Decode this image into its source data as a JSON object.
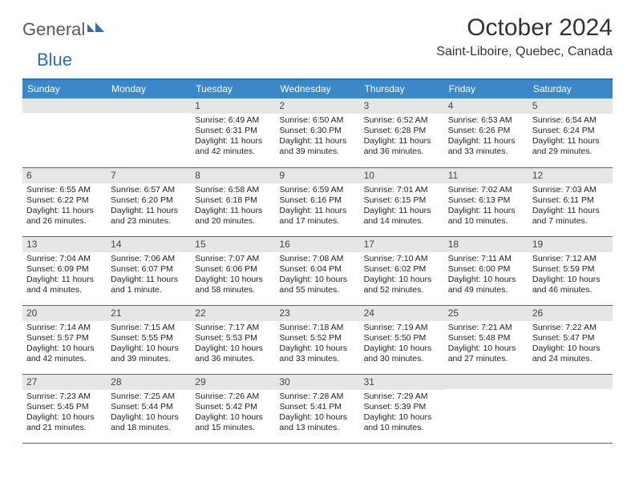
{
  "logo": {
    "text1": "General",
    "text2": "Blue"
  },
  "header": {
    "title": "October 2024",
    "location": "Saint-Liboire, Quebec, Canada"
  },
  "style": {
    "brand_blue": "#3b87c8",
    "rule_blue": "#2a70b8",
    "daynum_bg": "#e6e6e6",
    "page_bg": "#ffffff",
    "title_fontsize": 30,
    "location_fontsize": 16,
    "head_fontsize": 12,
    "body_fontsize": 10.5
  },
  "dayNames": [
    "Sunday",
    "Monday",
    "Tuesday",
    "Wednesday",
    "Thursday",
    "Friday",
    "Saturday"
  ],
  "weeks": [
    [
      null,
      null,
      {
        "n": "1",
        "sr": "Sunrise: 6:49 AM",
        "ss": "Sunset: 6:31 PM",
        "d1": "Daylight: 11 hours",
        "d2": "and 42 minutes."
      },
      {
        "n": "2",
        "sr": "Sunrise: 6:50 AM",
        "ss": "Sunset: 6:30 PM",
        "d1": "Daylight: 11 hours",
        "d2": "and 39 minutes."
      },
      {
        "n": "3",
        "sr": "Sunrise: 6:52 AM",
        "ss": "Sunset: 6:28 PM",
        "d1": "Daylight: 11 hours",
        "d2": "and 36 minutes."
      },
      {
        "n": "4",
        "sr": "Sunrise: 6:53 AM",
        "ss": "Sunset: 6:26 PM",
        "d1": "Daylight: 11 hours",
        "d2": "and 33 minutes."
      },
      {
        "n": "5",
        "sr": "Sunrise: 6:54 AM",
        "ss": "Sunset: 6:24 PM",
        "d1": "Daylight: 11 hours",
        "d2": "and 29 minutes."
      }
    ],
    [
      {
        "n": "6",
        "sr": "Sunrise: 6:55 AM",
        "ss": "Sunset: 6:22 PM",
        "d1": "Daylight: 11 hours",
        "d2": "and 26 minutes."
      },
      {
        "n": "7",
        "sr": "Sunrise: 6:57 AM",
        "ss": "Sunset: 6:20 PM",
        "d1": "Daylight: 11 hours",
        "d2": "and 23 minutes."
      },
      {
        "n": "8",
        "sr": "Sunrise: 6:58 AM",
        "ss": "Sunset: 6:18 PM",
        "d1": "Daylight: 11 hours",
        "d2": "and 20 minutes."
      },
      {
        "n": "9",
        "sr": "Sunrise: 6:59 AM",
        "ss": "Sunset: 6:16 PM",
        "d1": "Daylight: 11 hours",
        "d2": "and 17 minutes."
      },
      {
        "n": "10",
        "sr": "Sunrise: 7:01 AM",
        "ss": "Sunset: 6:15 PM",
        "d1": "Daylight: 11 hours",
        "d2": "and 14 minutes."
      },
      {
        "n": "11",
        "sr": "Sunrise: 7:02 AM",
        "ss": "Sunset: 6:13 PM",
        "d1": "Daylight: 11 hours",
        "d2": "and 10 minutes."
      },
      {
        "n": "12",
        "sr": "Sunrise: 7:03 AM",
        "ss": "Sunset: 6:11 PM",
        "d1": "Daylight: 11 hours",
        "d2": "and 7 minutes."
      }
    ],
    [
      {
        "n": "13",
        "sr": "Sunrise: 7:04 AM",
        "ss": "Sunset: 6:09 PM",
        "d1": "Daylight: 11 hours",
        "d2": "and 4 minutes."
      },
      {
        "n": "14",
        "sr": "Sunrise: 7:06 AM",
        "ss": "Sunset: 6:07 PM",
        "d1": "Daylight: 11 hours",
        "d2": "and 1 minute."
      },
      {
        "n": "15",
        "sr": "Sunrise: 7:07 AM",
        "ss": "Sunset: 6:06 PM",
        "d1": "Daylight: 10 hours",
        "d2": "and 58 minutes."
      },
      {
        "n": "16",
        "sr": "Sunrise: 7:08 AM",
        "ss": "Sunset: 6:04 PM",
        "d1": "Daylight: 10 hours",
        "d2": "and 55 minutes."
      },
      {
        "n": "17",
        "sr": "Sunrise: 7:10 AM",
        "ss": "Sunset: 6:02 PM",
        "d1": "Daylight: 10 hours",
        "d2": "and 52 minutes."
      },
      {
        "n": "18",
        "sr": "Sunrise: 7:11 AM",
        "ss": "Sunset: 6:00 PM",
        "d1": "Daylight: 10 hours",
        "d2": "and 49 minutes."
      },
      {
        "n": "19",
        "sr": "Sunrise: 7:12 AM",
        "ss": "Sunset: 5:59 PM",
        "d1": "Daylight: 10 hours",
        "d2": "and 46 minutes."
      }
    ],
    [
      {
        "n": "20",
        "sr": "Sunrise: 7:14 AM",
        "ss": "Sunset: 5:57 PM",
        "d1": "Daylight: 10 hours",
        "d2": "and 42 minutes."
      },
      {
        "n": "21",
        "sr": "Sunrise: 7:15 AM",
        "ss": "Sunset: 5:55 PM",
        "d1": "Daylight: 10 hours",
        "d2": "and 39 minutes."
      },
      {
        "n": "22",
        "sr": "Sunrise: 7:17 AM",
        "ss": "Sunset: 5:53 PM",
        "d1": "Daylight: 10 hours",
        "d2": "and 36 minutes."
      },
      {
        "n": "23",
        "sr": "Sunrise: 7:18 AM",
        "ss": "Sunset: 5:52 PM",
        "d1": "Daylight: 10 hours",
        "d2": "and 33 minutes."
      },
      {
        "n": "24",
        "sr": "Sunrise: 7:19 AM",
        "ss": "Sunset: 5:50 PM",
        "d1": "Daylight: 10 hours",
        "d2": "and 30 minutes."
      },
      {
        "n": "25",
        "sr": "Sunrise: 7:21 AM",
        "ss": "Sunset: 5:48 PM",
        "d1": "Daylight: 10 hours",
        "d2": "and 27 minutes."
      },
      {
        "n": "26",
        "sr": "Sunrise: 7:22 AM",
        "ss": "Sunset: 5:47 PM",
        "d1": "Daylight: 10 hours",
        "d2": "and 24 minutes."
      }
    ],
    [
      {
        "n": "27",
        "sr": "Sunrise: 7:23 AM",
        "ss": "Sunset: 5:45 PM",
        "d1": "Daylight: 10 hours",
        "d2": "and 21 minutes."
      },
      {
        "n": "28",
        "sr": "Sunrise: 7:25 AM",
        "ss": "Sunset: 5:44 PM",
        "d1": "Daylight: 10 hours",
        "d2": "and 18 minutes."
      },
      {
        "n": "29",
        "sr": "Sunrise: 7:26 AM",
        "ss": "Sunset: 5:42 PM",
        "d1": "Daylight: 10 hours",
        "d2": "and 15 minutes."
      },
      {
        "n": "30",
        "sr": "Sunrise: 7:28 AM",
        "ss": "Sunset: 5:41 PM",
        "d1": "Daylight: 10 hours",
        "d2": "and 13 minutes."
      },
      {
        "n": "31",
        "sr": "Sunrise: 7:29 AM",
        "ss": "Sunset: 5:39 PM",
        "d1": "Daylight: 10 hours",
        "d2": "and 10 minutes."
      },
      null,
      null
    ]
  ]
}
